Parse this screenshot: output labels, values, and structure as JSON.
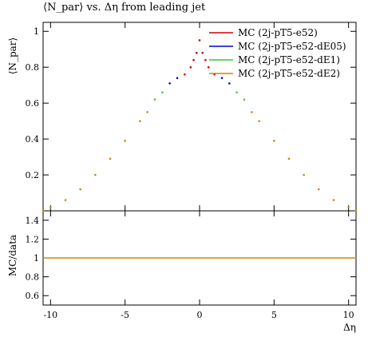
{
  "chart_data": [
    {
      "type": "scatter",
      "title": "⟨N_par⟩ vs. Δη from leading jet",
      "ylabel": "⟨N_par⟩",
      "xlabel": "",
      "xlim": [
        -10.5,
        10.5
      ],
      "ylim": [
        0,
        1.05
      ],
      "xticks": [
        -10,
        -5,
        0,
        5,
        10
      ],
      "yticks": [
        0.2,
        0.4,
        0.6,
        0.8,
        1
      ],
      "ytick_labels": [
        "0.2",
        "0.4",
        "0.6",
        "0.8",
        "1"
      ],
      "grid": false,
      "legend_position": "top-right",
      "series": [
        {
          "name": "MC (2j-pT5-e52)",
          "color": "#cc0000",
          "x": [
            -1.0,
            -0.6,
            -0.4,
            -0.2,
            0.0,
            0.2,
            0.4,
            0.6,
            1.0
          ],
          "y": [
            0.76,
            0.8,
            0.84,
            0.88,
            0.95,
            0.88,
            0.84,
            0.8,
            0.76
          ]
        },
        {
          "name": "MC (2j-pT5-e52-dE05)",
          "color": "#0000cc",
          "x": [
            -2.0,
            -1.5,
            1.5,
            2.0
          ],
          "y": [
            0.71,
            0.74,
            0.74,
            0.71
          ]
        },
        {
          "name": "MC (2j-pT5-e52-dE1)",
          "color": "#33cc33",
          "x": [
            -3.0,
            -2.5,
            2.5,
            3.0
          ],
          "y": [
            0.62,
            0.66,
            0.66,
            0.62
          ]
        },
        {
          "name": "MC (2j-pT5-e52-dE2)",
          "color": "#cc8800",
          "x": [
            -10.5,
            -10.0,
            -9.0,
            -8.0,
            -7.0,
            -6.0,
            -5.0,
            -4.0,
            -3.5,
            3.5,
            4.0,
            5.0,
            6.0,
            7.0,
            8.0,
            9.0,
            10.0,
            10.5
          ],
          "y": [
            0.0,
            0.02,
            0.06,
            0.12,
            0.2,
            0.29,
            0.39,
            0.5,
            0.55,
            0.55,
            0.5,
            0.39,
            0.29,
            0.2,
            0.12,
            0.06,
            0.02,
            0.0
          ]
        }
      ]
    },
    {
      "type": "scatter",
      "title": "",
      "ylabel": "MC/data",
      "xlabel": "Δη",
      "xlim": [
        -10.5,
        10.5
      ],
      "ylim": [
        0.5,
        1.5
      ],
      "xticks": [
        -10,
        -5,
        0,
        5,
        10
      ],
      "xtick_labels": [
        "-10",
        "-5",
        "0",
        "5",
        "10"
      ],
      "yticks": [
        0.6,
        0.8,
        1,
        1.2,
        1.4
      ],
      "ytick_labels": [
        "0.6",
        "0.8",
        "1",
        "1.2",
        "1.4"
      ],
      "grid": false,
      "series": [
        {
          "color": "#cc8800",
          "ratio": 1.0
        }
      ]
    }
  ]
}
